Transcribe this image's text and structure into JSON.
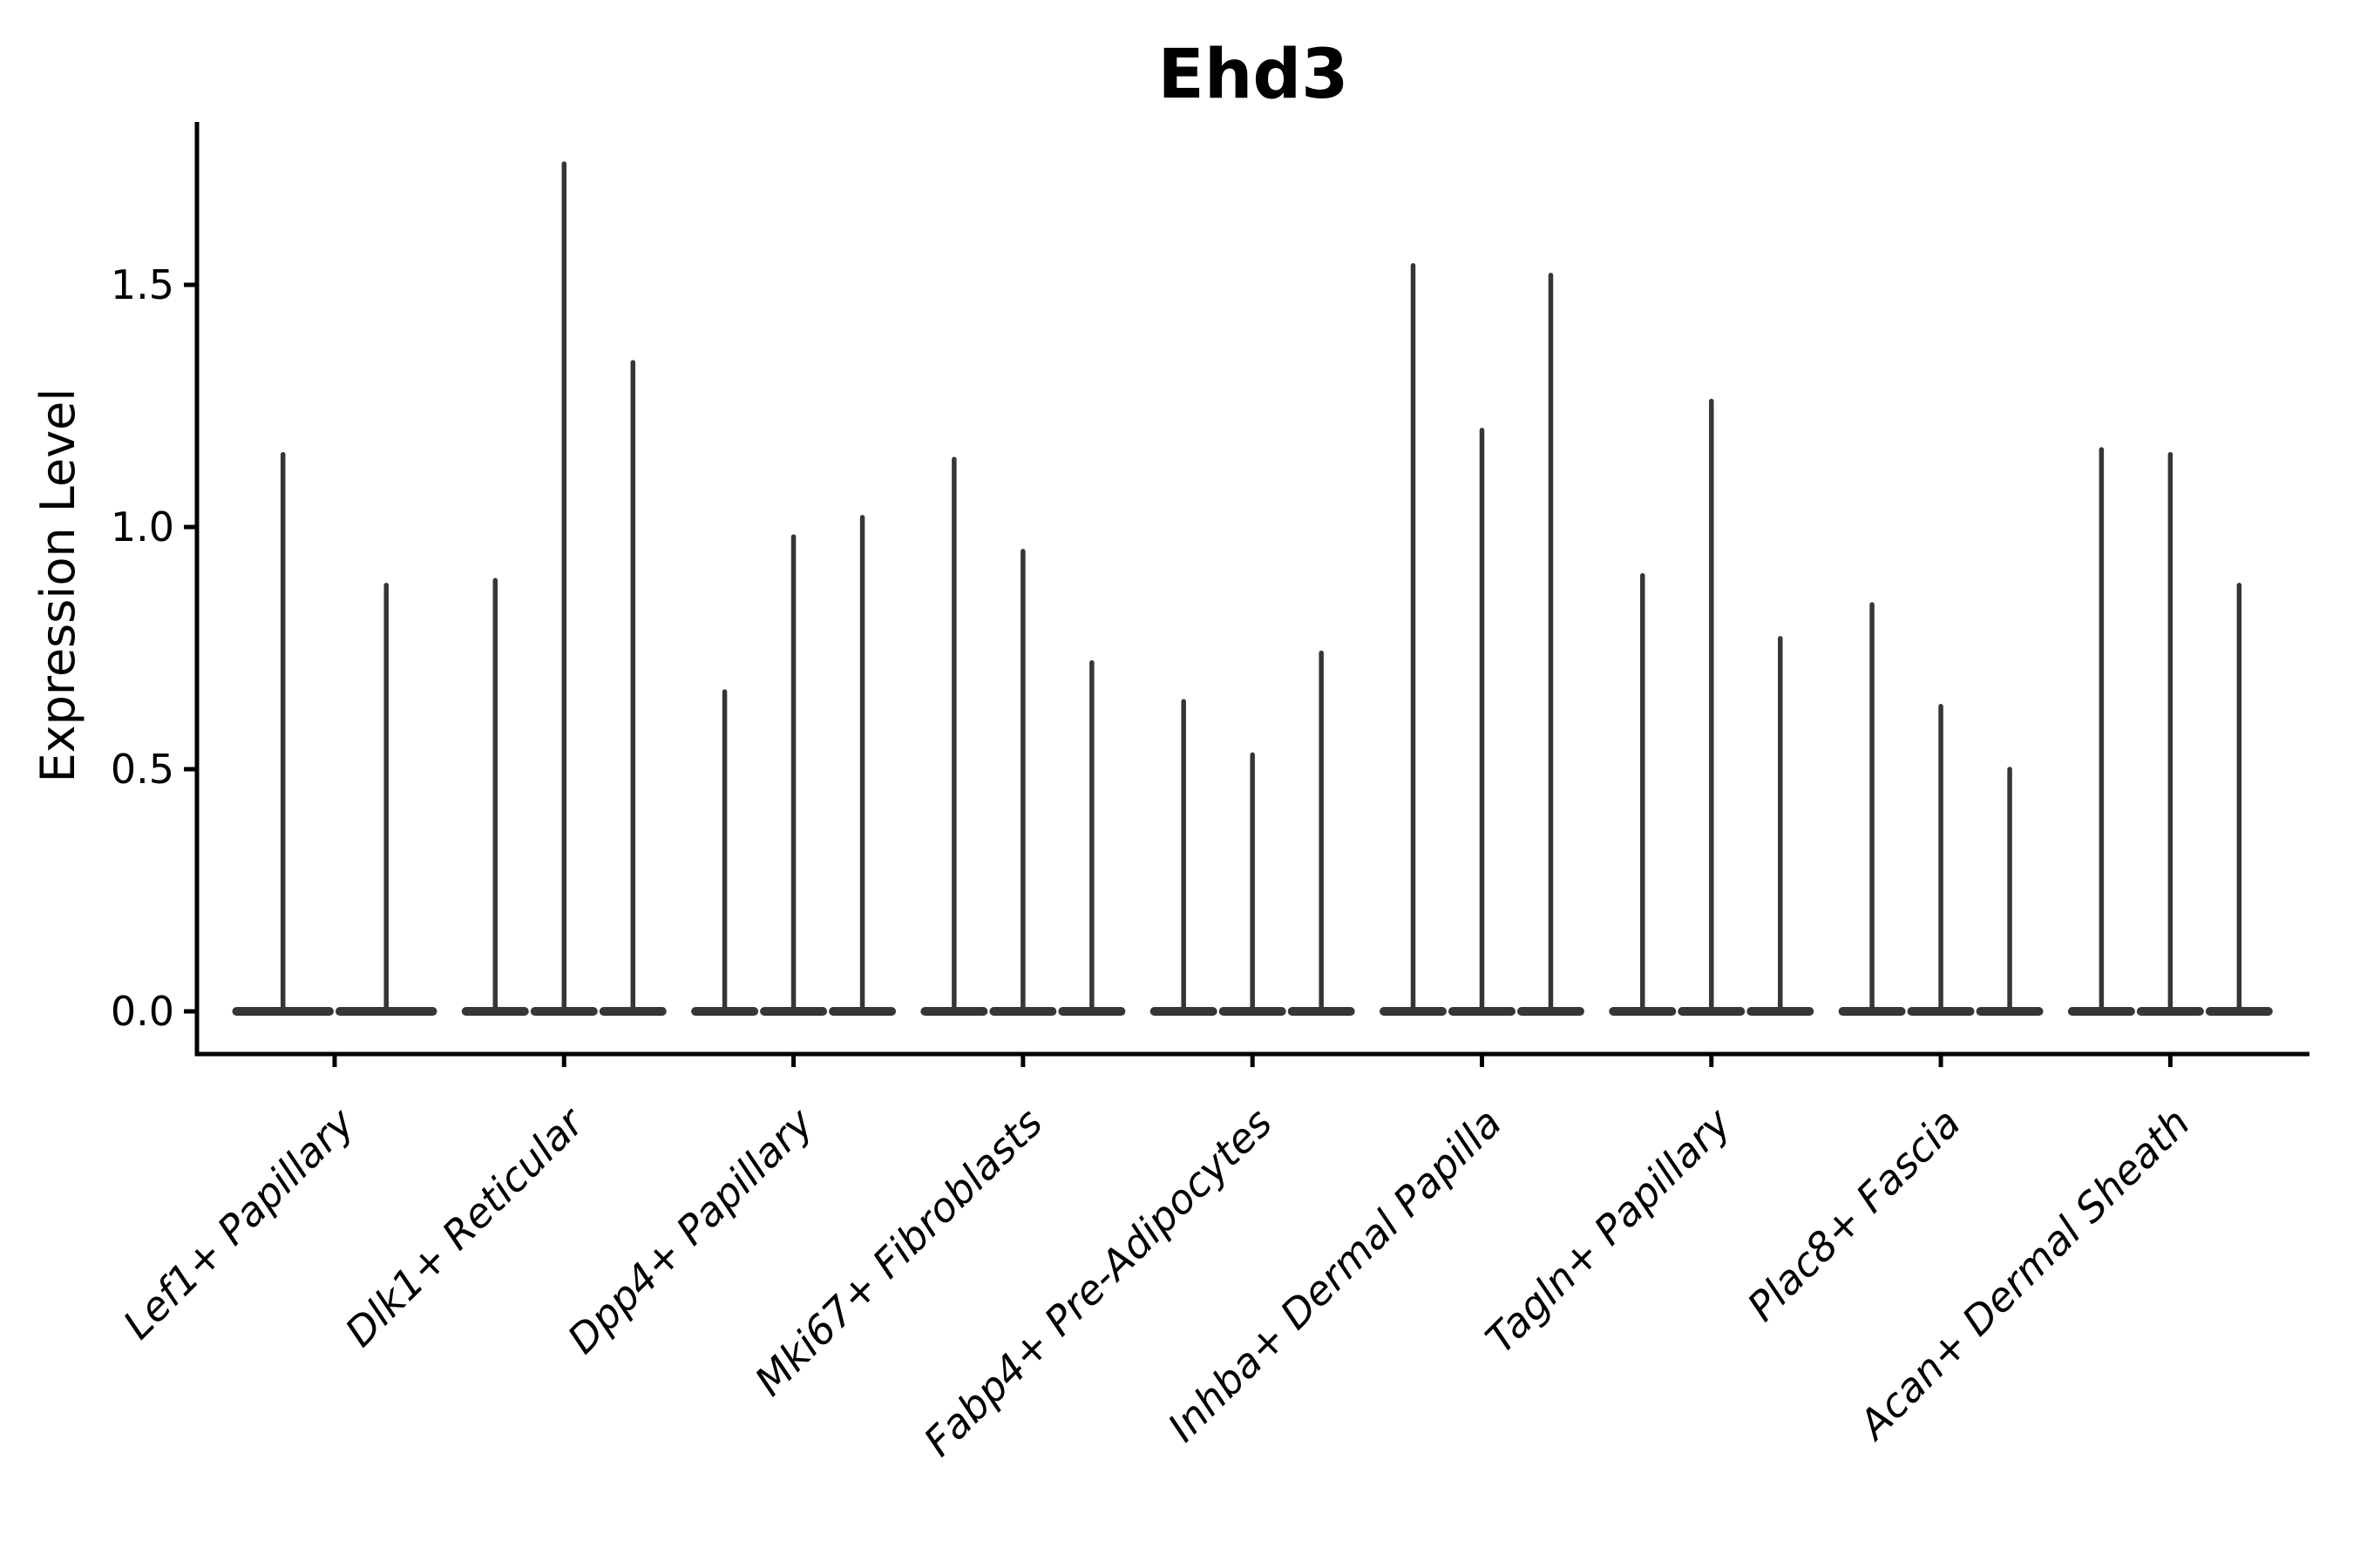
{
  "chart_data": {
    "type": "violin",
    "title": "Ehd3",
    "ylabel": "Expression Level",
    "xlabel": "",
    "yticks": [
      0.0,
      0.5,
      1.0,
      1.5
    ],
    "ytick_labels": [
      "0.0",
      "0.5",
      "1.0",
      "1.5"
    ],
    "ylim": [
      0.0,
      1.84
    ],
    "grid": false,
    "legend": "none",
    "x_tick_rotation_deg": 45,
    "categories": [
      "Lef1+ Papillary",
      "Dlk1+ Reticular",
      "Dpp4+ Papillary",
      "Mki67+ Fibroblasts",
      "Fabp4+ Pre-Adipocytes",
      "Inhba+ Dermal Papilla",
      "Tagln+ Papillary",
      "Plac8+ Fascia",
      "Acan+ Dermal Sheath"
    ],
    "baseline_value": 0.0,
    "groups": [
      {
        "label": "Lef1+ Papillary",
        "violin_max_values": [
          1.15,
          0.88
        ]
      },
      {
        "label": "Dlk1+ Reticular",
        "violin_max_values": [
          0.89,
          1.75,
          1.34
        ]
      },
      {
        "label": "Dpp4+ Papillary",
        "violin_max_values": [
          0.66,
          0.98,
          1.02
        ]
      },
      {
        "label": "Mki67+ Fibroblasts",
        "violin_max_values": [
          1.14,
          0.95,
          0.72
        ]
      },
      {
        "label": "Fabp4+ Pre-Adipocytes",
        "violin_max_values": [
          0.64,
          0.53,
          0.74
        ]
      },
      {
        "label": "Inhba+ Dermal Papilla",
        "violin_max_values": [
          1.54,
          1.2,
          1.52
        ]
      },
      {
        "label": "Tagln+ Papillary",
        "violin_max_values": [
          0.9,
          1.26,
          0.77
        ]
      },
      {
        "label": "Plac8+ Fascia",
        "violin_max_values": [
          0.84,
          0.63,
          0.5
        ]
      },
      {
        "label": "Acan+ Dermal Sheath",
        "violin_max_values": [
          1.16,
          1.15,
          0.88
        ]
      }
    ],
    "colors": {
      "violin": "#363636",
      "axis": "#000000",
      "text": "#000000",
      "background": "#ffffff"
    }
  }
}
